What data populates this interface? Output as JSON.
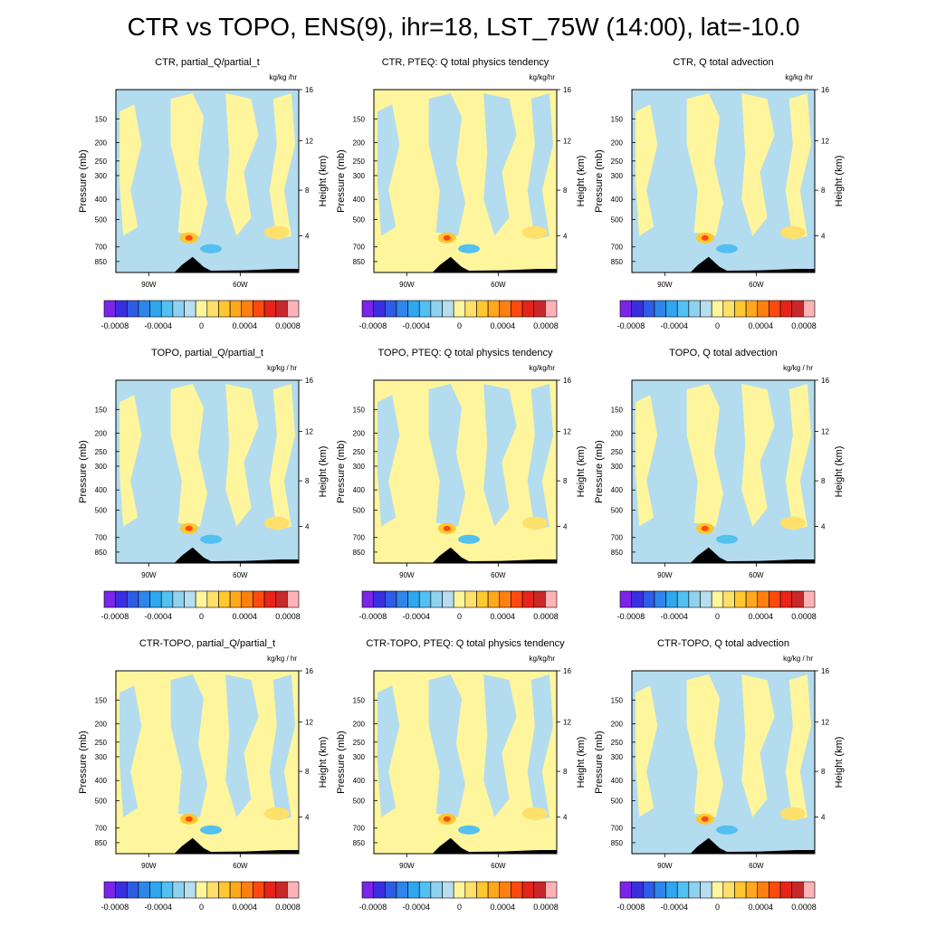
{
  "title": "CTR vs TOPO, ENS(9), ihr=18, LST_75W (14:00), lat=-10.0",
  "colors": {
    "positive_light": "#fff59d",
    "negative_light": "#b3dcef",
    "terrain": "#000000",
    "colorbar": [
      "#7c24e8",
      "#3a2fe0",
      "#2f5ce6",
      "#2f86ea",
      "#2fa6ee",
      "#52c0f0",
      "#8fd2ef",
      "#b6def0",
      "#fff59d",
      "#ffe06a",
      "#ffc730",
      "#ffa81e",
      "#ff7f10",
      "#ff4a0f",
      "#e8241a",
      "#c8282a",
      "#ffb3b8"
    ]
  },
  "rows": [
    {
      "panels": [
        {
          "title": "CTR, partial_Q/partial_t",
          "units": "kg/kg /hr"
        },
        {
          "title": "CTR, PTEQ: Q total physics tendency",
          "units": "kg/kg/hr"
        },
        {
          "title": "CTR, Q total advection",
          "units": "kg/kg /hr"
        }
      ]
    },
    {
      "panels": [
        {
          "title": "TOPO, partial_Q/partial_t",
          "units": "kg/kg / hr"
        },
        {
          "title": "TOPO, PTEQ: Q total physics tendency",
          "units": "kg/kg/hr"
        },
        {
          "title": "TOPO, Q total advection",
          "units": "kg/kg / hr"
        }
      ]
    },
    {
      "panels": [
        {
          "title": "CTR-TOPO, partial_Q/partial_t",
          "units": "kg/kg / hr"
        },
        {
          "title": "CTR-TOPO, PTEQ: Q total physics tendency",
          "units": "kg/kg/hr"
        },
        {
          "title": "CTR-TOPO, Q total advection",
          "units": "kg/kg / hr"
        }
      ]
    }
  ],
  "chart_data": {
    "type": "heatmap",
    "ylabel_left": "Pressure (mb)",
    "ylabel_right": "Height (km)",
    "pressure_ticks": [
      "150",
      "200",
      "250",
      "300",
      "400",
      "500",
      "700",
      "850"
    ],
    "height_ticks": [
      "16",
      "12",
      "8",
      "4"
    ],
    "lon_ticks": [
      "90W",
      "60W"
    ],
    "colorbar_labels": [
      "-0.0008",
      "-0.0004",
      "0",
      "0.0004",
      "0.0008"
    ],
    "colorbar_range": [
      -0.0009,
      0.0009
    ],
    "colorbar_levels": 17
  }
}
